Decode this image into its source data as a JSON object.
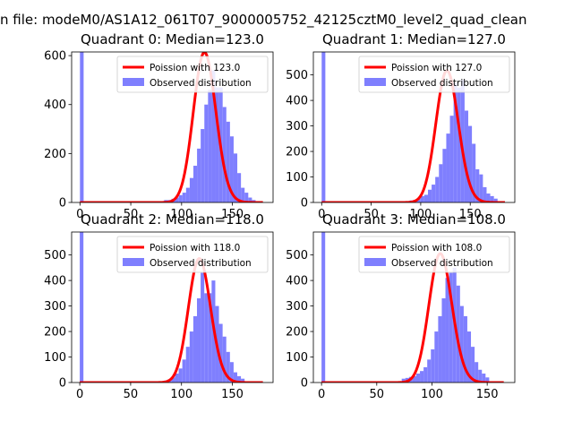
{
  "figure": {
    "suptitle": "n file: modeM0/AS1A12_061T07_9000005752_42125cztM0_level2_quad_clean"
  },
  "colors": {
    "histogram": "#7f7ffe",
    "poisson": "#ff0000"
  },
  "chart_data": [
    {
      "type": "histogram",
      "title": "Quadrant 0: Median=123.0",
      "median": 123.0,
      "xlim": [
        -8.2,
        190
      ],
      "ylim": [
        0,
        615
      ],
      "xticks": [
        0,
        50,
        100,
        150
      ],
      "yticks": [
        0,
        200,
        400,
        600
      ],
      "tick_labels_x": [
        "0",
        "50",
        "100",
        "150"
      ],
      "tick_labels_y": [
        "0",
        "200",
        "400",
        "600"
      ],
      "bins": {
        "start": 0,
        "width": 3.6
      },
      "counts": [
        615,
        0,
        0,
        0,
        0,
        0,
        0,
        0,
        0,
        0,
        0,
        0,
        0,
        0,
        0,
        0,
        0,
        0,
        0,
        0,
        0,
        0,
        3,
        10,
        10,
        15,
        20,
        30,
        40,
        60,
        100,
        150,
        220,
        300,
        400,
        460,
        540,
        470,
        470,
        390,
        330,
        270,
        200,
        120,
        60,
        40,
        20,
        10
      ],
      "legend": {
        "location": "upper right",
        "entries": [
          "Poission with 123.0",
          "Observed distribution"
        ]
      },
      "series": [
        {
          "name": "Poission with 123.0",
          "kind": "line",
          "mean": 123.0,
          "x_range": [
            0,
            180
          ]
        },
        {
          "name": "Observed distribution",
          "kind": "bars"
        }
      ]
    },
    {
      "type": "histogram",
      "title": "Quadrant 1: Median=127.0",
      "median": 127.0,
      "xlim": [
        -8.4,
        195
      ],
      "ylim": [
        0,
        590
      ],
      "xticks": [
        0,
        50,
        100,
        150
      ],
      "yticks": [
        0,
        100,
        200,
        300,
        400,
        500
      ],
      "tick_labels_x": [
        "0",
        "50",
        "100",
        "150"
      ],
      "tick_labels_y": [
        "0",
        "100",
        "200",
        "300",
        "400",
        "500"
      ],
      "bins": {
        "start": 0,
        "width": 3.7
      },
      "counts": [
        590,
        0,
        0,
        0,
        0,
        0,
        0,
        0,
        0,
        0,
        0,
        0,
        0,
        0,
        0,
        0,
        0,
        0,
        0,
        0,
        0,
        0,
        2,
        5,
        8,
        10,
        15,
        25,
        30,
        50,
        70,
        100,
        150,
        210,
        270,
        340,
        470,
        450,
        480,
        360,
        300,
        230,
        130,
        110,
        60,
        35,
        25,
        15
      ],
      "legend": {
        "location": "upper right",
        "entries": [
          "Poission with 127.0",
          "Observed distribution"
        ]
      },
      "series": [
        {
          "name": "Poission with 127.0",
          "kind": "line",
          "mean": 127.0,
          "x_range": [
            0,
            185
          ]
        },
        {
          "name": "Observed distribution",
          "kind": "bars"
        }
      ]
    },
    {
      "type": "histogram",
      "title": "Quadrant 2: Median=118.0",
      "median": 118.0,
      "xlim": [
        -8.0,
        190
      ],
      "ylim": [
        0,
        590
      ],
      "xticks": [
        0,
        50,
        100,
        150
      ],
      "yticks": [
        0,
        100,
        200,
        300,
        400,
        500
      ],
      "tick_labels_x": [
        "0",
        "50",
        "100",
        "150"
      ],
      "tick_labels_y": [
        "0",
        "100",
        "200",
        "300",
        "400",
        "500"
      ],
      "bins": {
        "start": 0,
        "width": 3.6
      },
      "counts": [
        590,
        0,
        0,
        0,
        0,
        0,
        0,
        0,
        0,
        0,
        0,
        0,
        0,
        0,
        0,
        0,
        0,
        0,
        0,
        0,
        0,
        2,
        5,
        8,
        12,
        20,
        35,
        55,
        90,
        140,
        200,
        260,
        330,
        430,
        350,
        350,
        400,
        300,
        230,
        180,
        120,
        80,
        40,
        25,
        15
      ],
      "legend": {
        "location": "upper right",
        "entries": [
          "Poission with 118.0",
          "Observed distribution"
        ]
      },
      "series": [
        {
          "name": "Poission with 118.0",
          "kind": "line",
          "mean": 118.0,
          "x_range": [
            0,
            180
          ]
        },
        {
          "name": "Observed distribution",
          "kind": "bars"
        }
      ]
    },
    {
      "type": "histogram",
      "title": "Quadrant 3: Median=108.0",
      "median": 108.0,
      "xlim": [
        -7.4,
        175
      ],
      "ylim": [
        0,
        590
      ],
      "xticks": [
        0,
        50,
        100,
        150
      ],
      "yticks": [
        0,
        100,
        200,
        300,
        400,
        500
      ],
      "tick_labels_x": [
        "0",
        "50",
        "100",
        "150"
      ],
      "tick_labels_y": [
        "0",
        "100",
        "200",
        "300",
        "400",
        "500"
      ],
      "bins": {
        "start": 0,
        "width": 3.3
      },
      "counts": [
        590,
        0,
        0,
        0,
        0,
        0,
        0,
        0,
        0,
        0,
        0,
        0,
        0,
        0,
        0,
        0,
        0,
        0,
        0,
        0,
        0,
        5,
        15,
        18,
        22,
        25,
        35,
        45,
        60,
        90,
        130,
        200,
        260,
        330,
        410,
        430,
        450,
        380,
        300,
        260,
        200,
        140,
        80,
        50,
        35,
        20
      ],
      "legend": {
        "location": "upper right",
        "entries": [
          "Poission with 108.0",
          "Observed distribution"
        ]
      },
      "series": [
        {
          "name": "Poission with 108.0",
          "kind": "line",
          "mean": 108.0,
          "x_range": [
            0,
            165
          ]
        },
        {
          "name": "Observed distribution",
          "kind": "bars"
        }
      ]
    }
  ]
}
